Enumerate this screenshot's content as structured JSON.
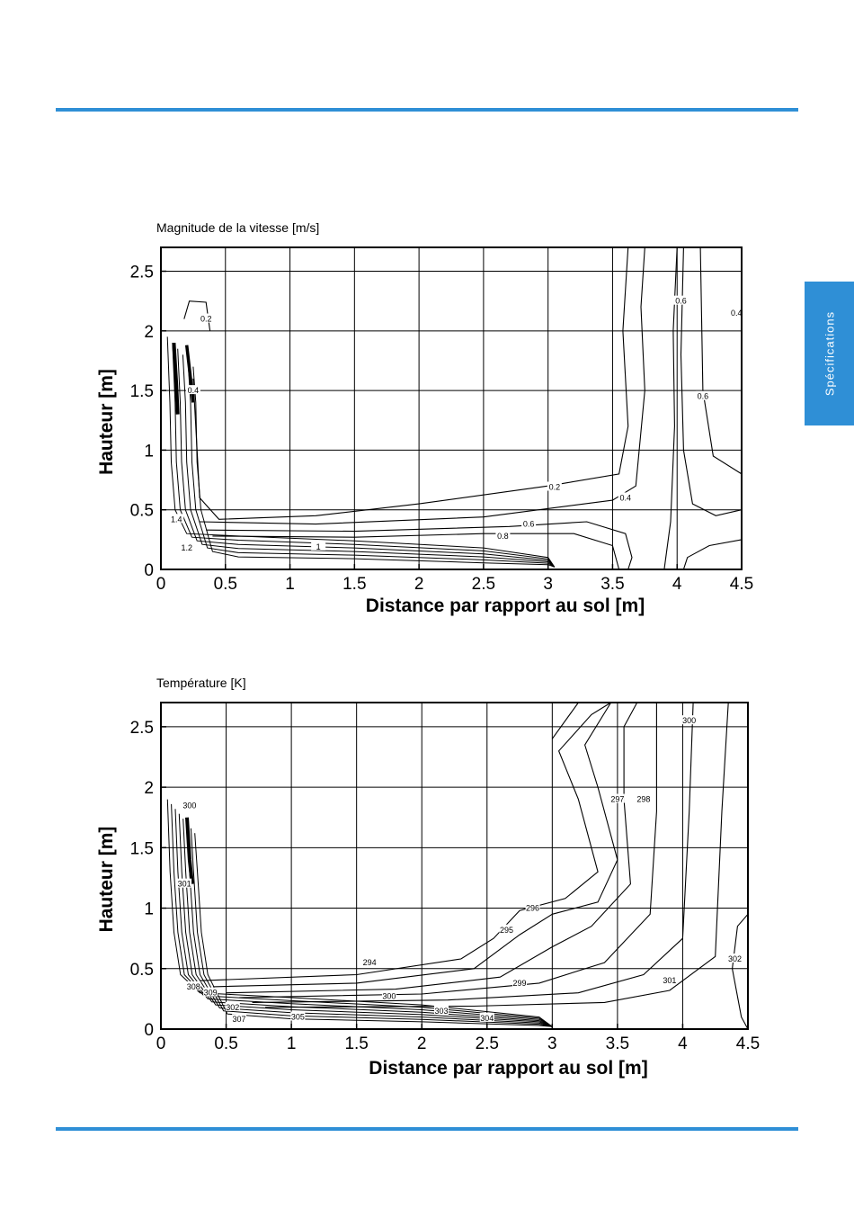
{
  "colors": {
    "accent": "#2f8fd6"
  },
  "side_tab": {
    "label": "Spécifications"
  },
  "chart_data": [
    {
      "type": "contour",
      "title": "Magnitude de la vitesse [m/s]",
      "xlabel": "Distance par rapport au sol [m]",
      "ylabel": "Hauteur [m]",
      "xlim": [
        0,
        4.5
      ],
      "ylim": [
        0,
        2.7
      ],
      "xticks": [
        "0",
        "0.5",
        "1",
        "1.5",
        "2",
        "2.5",
        "3",
        "3.5",
        "4",
        "4.5"
      ],
      "yticks": [
        "0",
        "0.5",
        "1",
        "1.5",
        "2",
        "2.5"
      ],
      "grid": true,
      "contour_labels": [
        {
          "text": "0.2",
          "x": 3.05,
          "y": 0.69
        },
        {
          "text": "0.4",
          "x": 3.6,
          "y": 0.6
        },
        {
          "text": "0.6",
          "x": 2.85,
          "y": 0.38
        },
        {
          "text": "0.8",
          "x": 2.65,
          "y": 0.28
        },
        {
          "text": "1",
          "x": 1.22,
          "y": 0.19
        },
        {
          "text": "1.2",
          "x": 0.2,
          "y": 0.18
        },
        {
          "text": "1.4",
          "x": 0.12,
          "y": 0.42
        },
        {
          "text": "0.4",
          "x": 0.25,
          "y": 1.5
        },
        {
          "text": "0.2",
          "x": 0.35,
          "y": 2.1
        },
        {
          "text": "0.6",
          "x": 4.03,
          "y": 2.25
        },
        {
          "text": "0.6",
          "x": 4.2,
          "y": 1.45
        },
        {
          "text": "0.4",
          "x": 4.46,
          "y": 2.15
        }
      ]
    },
    {
      "type": "contour",
      "title": "Température [K]",
      "xlabel": "Distance par rapport au sol [m]",
      "ylabel": "Hauteur [m]",
      "xlim": [
        0,
        4.5
      ],
      "ylim": [
        0,
        2.7
      ],
      "xticks": [
        "0",
        "0.5",
        "1",
        "1.5",
        "2",
        "2.5",
        "3",
        "3.5",
        "4",
        "4.5"
      ],
      "yticks": [
        "0",
        "0.5",
        "1",
        "1.5",
        "2",
        "2.5"
      ],
      "grid": true,
      "contour_labels": [
        {
          "text": "294",
          "x": 1.6,
          "y": 0.55
        },
        {
          "text": "295",
          "x": 2.65,
          "y": 0.82
        },
        {
          "text": "296",
          "x": 2.85,
          "y": 1.0
        },
        {
          "text": "297",
          "x": 3.5,
          "y": 1.9
        },
        {
          "text": "298",
          "x": 3.7,
          "y": 1.9
        },
        {
          "text": "299",
          "x": 2.75,
          "y": 0.38
        },
        {
          "text": "300",
          "x": 1.75,
          "y": 0.27
        },
        {
          "text": "300",
          "x": 4.05,
          "y": 2.55
        },
        {
          "text": "301",
          "x": 3.9,
          "y": 0.4
        },
        {
          "text": "302",
          "x": 0.55,
          "y": 0.18
        },
        {
          "text": "302",
          "x": 4.4,
          "y": 0.58
        },
        {
          "text": "303",
          "x": 2.15,
          "y": 0.15
        },
        {
          "text": "304",
          "x": 2.5,
          "y": 0.09
        },
        {
          "text": "305",
          "x": 1.05,
          "y": 0.1
        },
        {
          "text": "307",
          "x": 0.6,
          "y": 0.08
        },
        {
          "text": "308",
          "x": 0.25,
          "y": 0.35
        },
        {
          "text": "309",
          "x": 0.38,
          "y": 0.3
        },
        {
          "text": "301",
          "x": 0.18,
          "y": 1.2
        },
        {
          "text": "300",
          "x": 0.22,
          "y": 1.85
        }
      ]
    }
  ]
}
